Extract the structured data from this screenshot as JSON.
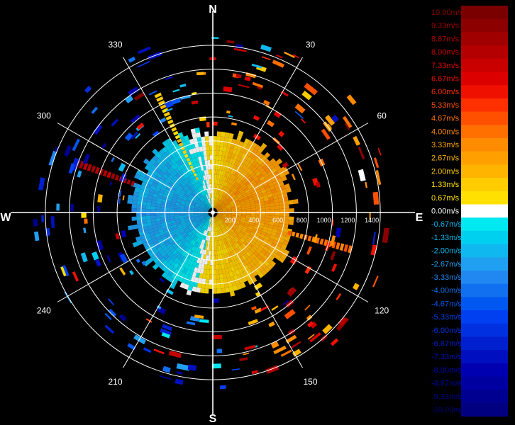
{
  "chart_data": {
    "type": "heatmap",
    "projection": "polar-ppi",
    "compass": {
      "north": "N",
      "south": "S",
      "east": "E",
      "west": "W"
    },
    "azimuth_labels": [
      "30",
      "60",
      "120",
      "150",
      "210",
      "240",
      "300",
      "330"
    ],
    "range_labels": [
      "200",
      "400",
      "600",
      "800",
      "1000",
      "1200",
      "1400"
    ],
    "range_max": 1500,
    "colorbar": {
      "labels": [
        "10.00m/s",
        "9.33m/s",
        "8.67m/s",
        "8.00m/s",
        "7.33m/s",
        "6.67m/s",
        "6.00m/s",
        "5.33m/s",
        "4.67m/s",
        "4.00m/s",
        "3.33m/s",
        "2.67m/s",
        "2.00m/s",
        "1.33m/s",
        "0.67m/s",
        "0.00m/s",
        "-0.67m/s",
        "-1.33m/s",
        "-2.00m/s",
        "-2.67m/s",
        "-3.33m/s",
        "-4.00m/s",
        "-4.67m/s",
        "-5.33m/s",
        "-6.00m/s",
        "-6.67m/s",
        "-7.33m/s",
        "-8.00m/s",
        "-8.67m/s",
        "-9.33m/s",
        "-10.00m/s"
      ],
      "colors": [
        "#7a0000",
        "#8c0000",
        "#a00000",
        "#b40000",
        "#c80000",
        "#dc0000",
        "#f01000",
        "#ff3000",
        "#ff5000",
        "#ff7000",
        "#ff8c00",
        "#ffa000",
        "#ffb400",
        "#ffcc00",
        "#ffe000",
        "#ffffff",
        "#00e8f0",
        "#00d0f0",
        "#10b8f0",
        "#20a0f0",
        "#2088f0",
        "#1070f0",
        "#0058f0",
        "#0040f0",
        "#0030e0",
        "#0020d0",
        "#0010c0",
        "#0000b0",
        "#0000a0",
        "#000090",
        "#000080"
      ],
      "label_colors": [
        "#8c0000",
        "#a00000",
        "#b40000",
        "#c80000",
        "#dc0000",
        "#f01000",
        "#ff3000",
        "#ff5000",
        "#ff7000",
        "#ff8c00",
        "#ffa000",
        "#ffb400",
        "#ffcc00",
        "#ffe000",
        "#ffe000",
        "#ffffff",
        "#10b8f0",
        "#10b8f0",
        "#10b8f0",
        "#20a0f0",
        "#2088f0",
        "#1070f0",
        "#0058f0",
        "#0040f0",
        "#0030e0",
        "#0020d0",
        "#0010c0",
        "#0000b0",
        "#0000a0",
        "#000090",
        "#000080"
      ]
    },
    "sector_wind_mps": [
      {
        "azimuth_deg": 0,
        "value": 0.67
      },
      {
        "azimuth_deg": 45,
        "value": 2.67
      },
      {
        "azimuth_deg": 90,
        "value": 2.67
      },
      {
        "azimuth_deg": 135,
        "value": 2.0
      },
      {
        "azimuth_deg": 180,
        "value": 0.67
      },
      {
        "azimuth_deg": 225,
        "value": -2.0
      },
      {
        "azimuth_deg": 270,
        "value": -2.67
      },
      {
        "azimuth_deg": 315,
        "value": -2.0
      }
    ],
    "notable_returns": [
      {
        "azimuth_deg": 105,
        "range_from": 650,
        "range_to": 1200,
        "value": 4.0
      },
      {
        "azimuth_deg": 335,
        "range_from": 300,
        "range_to": 1100,
        "value": 1.33
      },
      {
        "azimuth_deg": 290,
        "range_from": 700,
        "range_to": 1200,
        "value": 8.0
      }
    ]
  }
}
